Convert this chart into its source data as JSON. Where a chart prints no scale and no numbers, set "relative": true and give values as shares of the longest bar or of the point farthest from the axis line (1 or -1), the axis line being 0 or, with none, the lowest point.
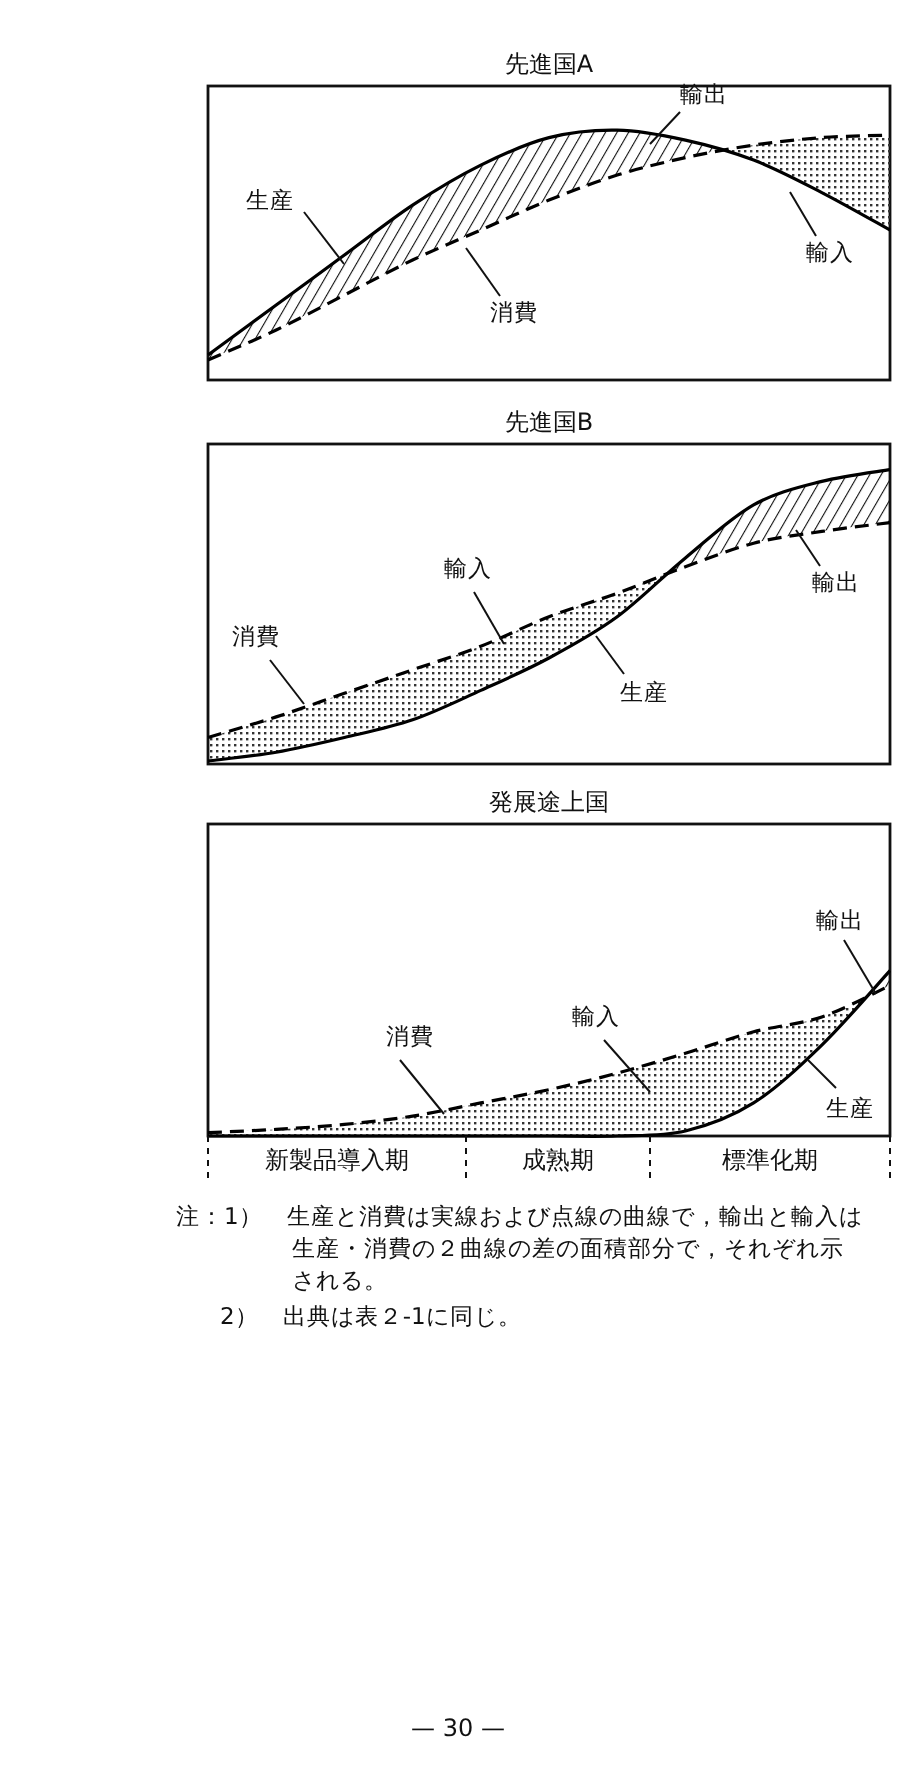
{
  "chart_data": [
    {
      "type": "line",
      "title": "先進国A",
      "relative": true,
      "categories": [
        null,
        null,
        null,
        null,
        null,
        null,
        null,
        null,
        null,
        null,
        null
      ],
      "series": [
        {
          "name": "生産",
          "color": "#000000",
          "line_style": "solid",
          "values": [
            0.1,
            0.3,
            0.5,
            0.7,
            0.86,
            0.97,
            1.0,
            0.96,
            0.88,
            0.75,
            0.6
          ],
          "lower": [
            0.08,
            0.2,
            0.34,
            0.48,
            0.6,
            0.72,
            0.82,
            0.89,
            0.94,
            null,
            null
          ],
          "upper": [
            0.1,
            0.3,
            0.5,
            0.7,
            0.86,
            0.97,
            1.0,
            0.96,
            0.88,
            null,
            null
          ]
        },
        {
          "name": "消費",
          "color": "#000000",
          "line_style": "dashed",
          "values": [
            0.08,
            0.2,
            0.34,
            0.48,
            0.6,
            0.72,
            0.82,
            0.89,
            0.94,
            0.97,
            0.98
          ],
          "lower": [
            null,
            null,
            null,
            null,
            null,
            null,
            null,
            0.96,
            0.88,
            0.75,
            0.6
          ],
          "upper": [
            null,
            null,
            null,
            null,
            null,
            null,
            null,
            0.89,
            0.94,
            0.97,
            0.98
          ]
        }
      ],
      "annotations": [
        "輸出",
        "輸入"
      ]
    },
    {
      "type": "line",
      "title": "先進国B",
      "relative": true,
      "categories": [
        null,
        null,
        null,
        null,
        null,
        null,
        null,
        null,
        null,
        null,
        null
      ],
      "series": [
        {
          "name": "生産",
          "color": "#000000",
          "line_style": "solid",
          "values": [
            0.01,
            0.04,
            0.09,
            0.15,
            0.25,
            0.36,
            0.5,
            0.7,
            0.88,
            0.96,
            1.0
          ],
          "lower": [
            null,
            null,
            null,
            null,
            null,
            null,
            0.58,
            0.67,
            0.75,
            0.79,
            0.82
          ],
          "upper": [
            null,
            null,
            null,
            null,
            null,
            null,
            0.5,
            0.7,
            0.88,
            0.96,
            1.0
          ]
        },
        {
          "name": "消費",
          "color": "#000000",
          "line_style": "dashed",
          "values": [
            0.09,
            0.16,
            0.24,
            0.32,
            0.4,
            0.5,
            0.58,
            0.67,
            0.75,
            0.79,
            0.82
          ],
          "lower": [
            0.01,
            0.04,
            0.09,
            0.15,
            0.25,
            0.36,
            0.5,
            0.7,
            null,
            null,
            null
          ],
          "upper": [
            0.09,
            0.16,
            0.24,
            0.32,
            0.4,
            0.5,
            0.58,
            0.67,
            null,
            null,
            null
          ]
        }
      ],
      "annotations": [
        "輸出",
        "輸入"
      ]
    },
    {
      "type": "line",
      "title": "発展途上国",
      "relative": true,
      "categories": [
        null,
        null,
        null,
        null,
        null,
        null,
        null,
        null,
        null,
        null,
        null
      ],
      "series": [
        {
          "name": "生産",
          "color": "#000000",
          "line_style": "solid",
          "values": [
            0,
            0,
            0,
            0,
            0,
            0,
            0,
            0.03,
            0.2,
            0.55,
            1.0
          ],
          "lower": [
            null,
            null,
            null,
            null,
            null,
            null,
            null,
            null,
            null,
            0.72,
            0.91
          ],
          "upper": [
            null,
            null,
            null,
            null,
            null,
            null,
            null,
            null,
            null,
            0.55,
            1.0
          ]
        },
        {
          "name": "消費",
          "color": "#000000",
          "line_style": "dashed",
          "values": [
            0.02,
            0.04,
            0.07,
            0.12,
            0.2,
            0.28,
            0.38,
            0.5,
            0.63,
            0.72,
            0.91
          ],
          "lower": [
            0,
            0,
            0,
            0,
            0,
            0,
            0,
            0.03,
            0.2,
            0.55,
            1.0
          ],
          "upper": [
            0.02,
            0.04,
            0.07,
            0.12,
            0.2,
            0.28,
            0.38,
            0.5,
            0.63,
            0.72,
            0.91
          ]
        }
      ],
      "annotations": [
        "輸出",
        "輸入",
        "新製品導入期",
        "成熟期",
        "標準化期",
        "注：1）　生産と消費は実線および点線の曲線で，輸出と輸入は生産・消費の２曲線の差の面積部分で，それぞれ示される。",
        "2）　出典は表２-1に同じ。",
        "— 30 —"
      ]
    }
  ]
}
